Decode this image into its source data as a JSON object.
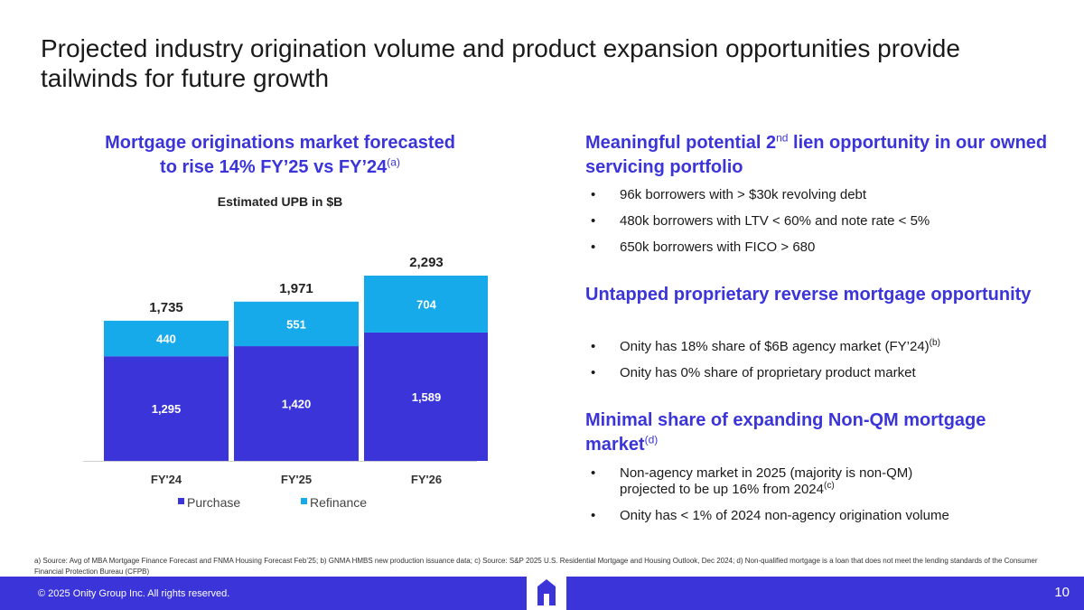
{
  "title": "Projected industry origination volume and product expansion opportunities provide tailwinds for future growth",
  "left": {
    "heading_line1": "Mortgage originations market forecasted",
    "heading_line2": "to rise 14% FY’25 vs FY’24",
    "heading_note": "(a)",
    "subtitle": "Estimated UPB in $B"
  },
  "chart_data": {
    "type": "bar",
    "stacked": true,
    "title": "Estimated UPB in $B",
    "categories": [
      "FY'24",
      "FY'25",
      "FY'26"
    ],
    "series": [
      {
        "name": "Purchase",
        "values": [
          1295,
          1420,
          1589
        ],
        "color": "#3b35d9"
      },
      {
        "name": "Refinance",
        "values": [
          440,
          551,
          704
        ],
        "color": "#17aaeb"
      }
    ],
    "totals": [
      "1,735",
      "1,971",
      "2,293"
    ],
    "segment_labels": [
      [
        "1,295",
        "1,420",
        "1,589"
      ],
      [
        "440",
        "551",
        "704"
      ]
    ],
    "legend": [
      "Purchase",
      "Refinance"
    ],
    "legend_position": "bottom"
  },
  "sections": [
    {
      "heading_pre": "Meaningful potential 2",
      "heading_sup": "nd",
      "heading_post": " lien opportunity in our owned servicing portfolio",
      "bullets": [
        {
          "text": "96k borrowers with > $30k revolving debt",
          "note": ""
        },
        {
          "text": "480k borrowers with LTV < 60% and note rate < 5%",
          "note": ""
        },
        {
          "text": "650k borrowers with FICO > 680",
          "note": ""
        }
      ]
    },
    {
      "heading_pre": "Untapped proprietary reverse mortgage opportunity",
      "heading_sup": "",
      "heading_post": "",
      "bullets": [
        {
          "text": "Onity has 18% share of $6B agency market (FY’24)",
          "note": "(b)"
        },
        {
          "text": "Onity has 0% share of proprietary product market",
          "note": ""
        }
      ]
    },
    {
      "heading_pre": "Minimal share of expanding Non-QM mortgage market",
      "heading_sup": "(d)",
      "heading_post": "",
      "bullets": [
        {
          "text": "Non-agency market in 2025 (majority is non-QM) projected to be up 16% from 2024",
          "note": "(c)"
        },
        {
          "text": "Onity has < 1% of 2024 non-agency origination volume",
          "note": ""
        }
      ]
    }
  ],
  "footnote": "a) Source: Avg of MBA Mortgage Finance Forecast and FNMA Housing Forecast Feb’25; b) GNMA HMBS new production issuance data; c) Source: S&P 2025 U.S. Residential Mortgage and Housing Outlook, Dec 2024; d) Non-qualified mortgage is a loan that does not meet the lending standards of the Consumer Financial Protection Bureau (CFPB)",
  "footer": {
    "copyright": "© 2025 Onity Group Inc. All rights reserved.",
    "page_number": "10",
    "logo_icon": "house-logo-icon",
    "colors": {
      "brand": "#3b35d9",
      "accent": "#17aaeb"
    }
  }
}
